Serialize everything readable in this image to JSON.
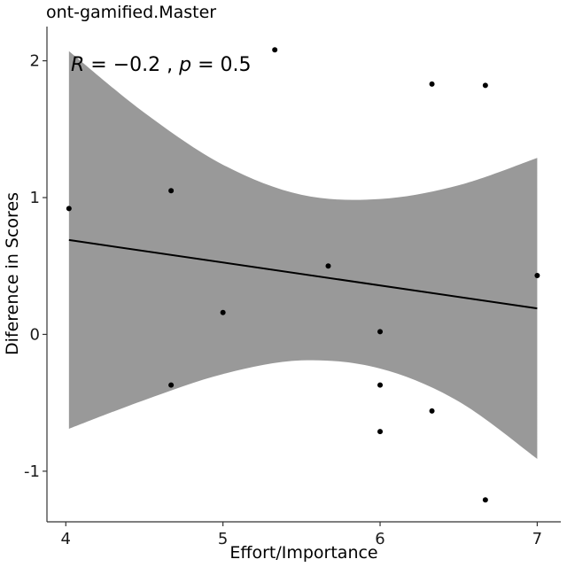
{
  "chart_data": {
    "type": "scatter",
    "title": "ont-gamified.Master",
    "xlabel": "Effort/Importance",
    "ylabel": "Diference in Scores",
    "xlim": [
      3.88,
      7.15
    ],
    "ylim": [
      -1.37,
      2.25
    ],
    "xticks": [
      4,
      5,
      6,
      7
    ],
    "yticks": [
      -1,
      0,
      1,
      2
    ],
    "xtick_labels": [
      "4",
      "5",
      "6",
      "7"
    ],
    "ytick_labels": [
      "-1",
      "0",
      "1",
      "2"
    ],
    "annotation": {
      "R_symbol": "R",
      "R_equals": " = −0.2 , ",
      "p_symbol": "p",
      "p_equals": " = 0.5"
    },
    "points": [
      {
        "x": 4.02,
        "y": 0.92
      },
      {
        "x": 4.67,
        "y": 1.05
      },
      {
        "x": 4.67,
        "y": -0.37
      },
      {
        "x": 5.0,
        "y": 0.16
      },
      {
        "x": 5.33,
        "y": 2.08
      },
      {
        "x": 5.67,
        "y": 0.5
      },
      {
        "x": 6.0,
        "y": 0.02
      },
      {
        "x": 6.0,
        "y": -0.37
      },
      {
        "x": 6.0,
        "y": -0.71
      },
      {
        "x": 6.33,
        "y": 1.83
      },
      {
        "x": 6.33,
        "y": -0.56
      },
      {
        "x": 6.67,
        "y": 1.82
      },
      {
        "x": 6.67,
        "y": -1.21
      },
      {
        "x": 7.0,
        "y": 0.43
      }
    ],
    "regression": {
      "x": [
        4.02,
        7.0
      ],
      "y": [
        0.69,
        0.19
      ]
    },
    "confidence_band": {
      "x": [
        4.02,
        4.5,
        5.0,
        5.5,
        6.0,
        6.5,
        7.0
      ],
      "upper": [
        2.07,
        1.62,
        1.24,
        1.02,
        0.99,
        1.09,
        1.29
      ],
      "lower": [
        -0.69,
        -0.48,
        -0.29,
        -0.19,
        -0.25,
        -0.49,
        -0.91
      ]
    },
    "grid": false,
    "colors": {
      "points": "#000000",
      "line": "#000000",
      "band": "#999999",
      "axis": "#333333"
    }
  }
}
